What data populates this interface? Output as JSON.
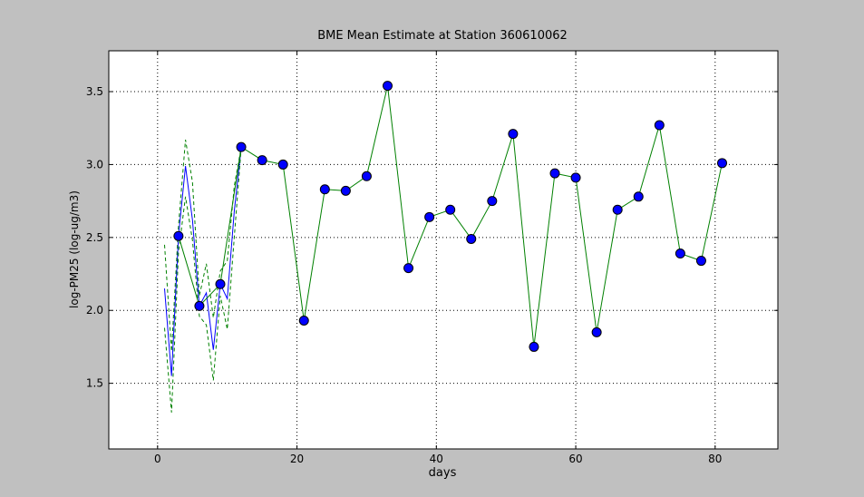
{
  "chart_data": {
    "type": "line",
    "title": "BME Mean Estimate at Station 360610062",
    "xlabel": "days",
    "ylabel": "log-PM25 (log-ug/m3)",
    "xlim": [
      -7,
      89
    ],
    "ylim": [
      1.05,
      3.78
    ],
    "xticks": [
      0,
      20,
      40,
      60,
      80
    ],
    "yticks": [
      1.5,
      2.0,
      2.5,
      3.0,
      3.5
    ],
    "xtick_labels": [
      "0",
      "20",
      "40",
      "60",
      "80"
    ],
    "ytick_labels": [
      "1.5",
      "2.0",
      "2.5",
      "3.0",
      "3.5"
    ],
    "grid": true,
    "series": [
      {
        "style": "observed-markers",
        "line_color": "#008000",
        "marker_color": "#0000ff",
        "x": [
          3,
          6,
          9,
          12,
          15,
          18,
          21,
          24,
          27,
          30,
          33,
          36,
          39,
          42,
          45,
          48,
          51,
          54,
          57,
          60,
          63,
          66,
          69,
          72,
          75,
          78,
          81
        ],
        "y": [
          2.51,
          2.03,
          2.18,
          3.12,
          3.03,
          3.0,
          1.93,
          2.83,
          2.82,
          2.92,
          3.54,
          2.29,
          2.64,
          2.69,
          2.49,
          2.75,
          3.21,
          1.75,
          2.94,
          2.91,
          1.85,
          2.69,
          2.78,
          3.27,
          2.39,
          2.34,
          3.01
        ]
      },
      {
        "style": "mean-estimate",
        "line_color": "#0000ff",
        "dash": "solid",
        "x": [
          1,
          2,
          3,
          4,
          5,
          6,
          7,
          8,
          9,
          10,
          11,
          12
        ],
        "y": [
          2.15,
          1.55,
          2.51,
          2.99,
          2.62,
          2.03,
          2.12,
          1.73,
          2.18,
          2.08,
          2.68,
          3.12
        ]
      },
      {
        "style": "upper-bound",
        "line_color": "#008000",
        "dash": "dashed",
        "x": [
          1,
          2,
          3,
          4,
          5,
          6,
          7,
          8,
          9,
          10,
          11,
          12
        ],
        "y": [
          2.45,
          1.72,
          2.58,
          3.17,
          2.88,
          2.1,
          2.32,
          1.95,
          2.27,
          2.34,
          2.85,
          3.12
        ]
      },
      {
        "style": "lower-bound",
        "line_color": "#008000",
        "dash": "dashed",
        "x": [
          1,
          2,
          3,
          4,
          5,
          6,
          7,
          8,
          9,
          10,
          11,
          12
        ],
        "y": [
          1.88,
          1.3,
          2.4,
          2.78,
          2.48,
          1.96,
          1.9,
          1.52,
          2.1,
          1.87,
          2.5,
          3.12
        ]
      }
    ]
  }
}
